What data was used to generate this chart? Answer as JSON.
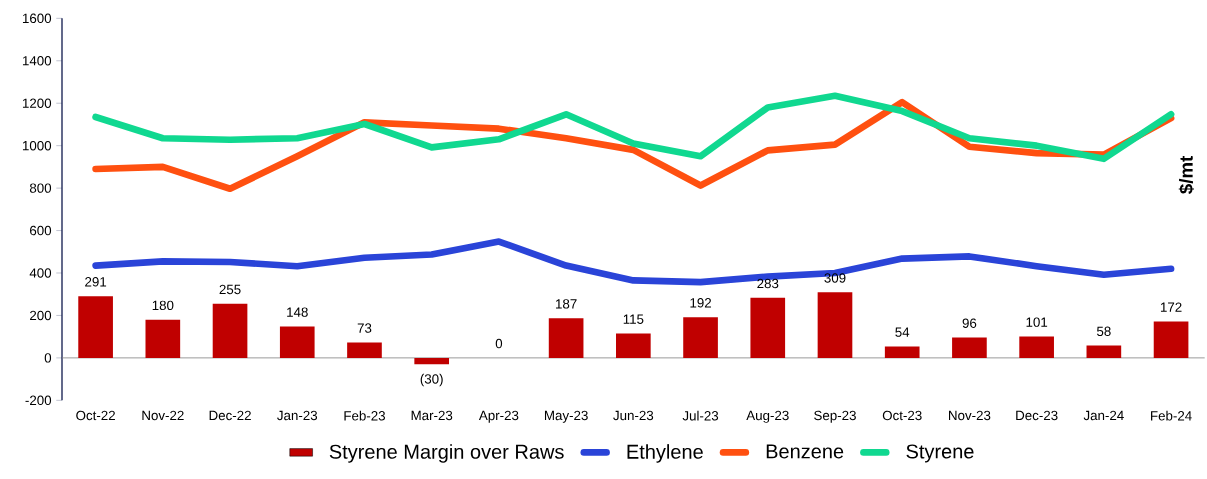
{
  "chart_data": {
    "type": "line",
    "ylabel": "$/mt",
    "categories": [
      "Oct-22",
      "Nov-22",
      "Dec-22",
      "Jan-23",
      "Feb-23",
      "Mar-23",
      "Apr-23",
      "May-23",
      "Jun-23",
      "Jul-23",
      "Aug-23",
      "Sep-23",
      "Oct-23",
      "Nov-23",
      "Dec-23",
      "Jan-24",
      "Feb-24"
    ],
    "series": [
      {
        "name": "Styrene Margin over Raws",
        "type": "bar",
        "color": "#c00000",
        "values": [
          291,
          180,
          255,
          148,
          73,
          -30,
          0,
          187,
          115,
          192,
          283,
          309,
          54,
          96,
          101,
          58,
          172
        ],
        "value_labels": [
          "291",
          "180",
          "255",
          "148",
          "73",
          "(30)",
          "0",
          "187",
          "115",
          "192",
          "283",
          "309",
          "54",
          "96",
          "101",
          "58",
          "172"
        ]
      },
      {
        "name": "Ethylene",
        "color": "#2a44d8",
        "values": [
          435,
          455,
          452,
          432,
          472,
          487,
          548,
          435,
          365,
          357,
          383,
          400,
          468,
          478,
          432,
          392,
          420
        ]
      },
      {
        "name": "Benzene",
        "color": "#ff5010",
        "values": [
          890,
          900,
          797,
          950,
          1110,
          1095,
          1080,
          1035,
          980,
          812,
          978,
          1005,
          1205,
          995,
          965,
          958,
          1130
        ]
      },
      {
        "name": "Styrene",
        "color": "#10d890",
        "values": [
          1135,
          1035,
          1028,
          1035,
          1102,
          992,
          1030,
          1148,
          1010,
          950,
          1180,
          1235,
          1163,
          1035,
          1000,
          938,
          1148
        ]
      }
    ],
    "ylim": [
      -200,
      1600
    ],
    "yticks": [
      -200,
      0,
      200,
      400,
      600,
      800,
      1000,
      1200,
      1400,
      1600
    ],
    "legend": "bottom",
    "marker": "none",
    "line_style": "solid"
  }
}
